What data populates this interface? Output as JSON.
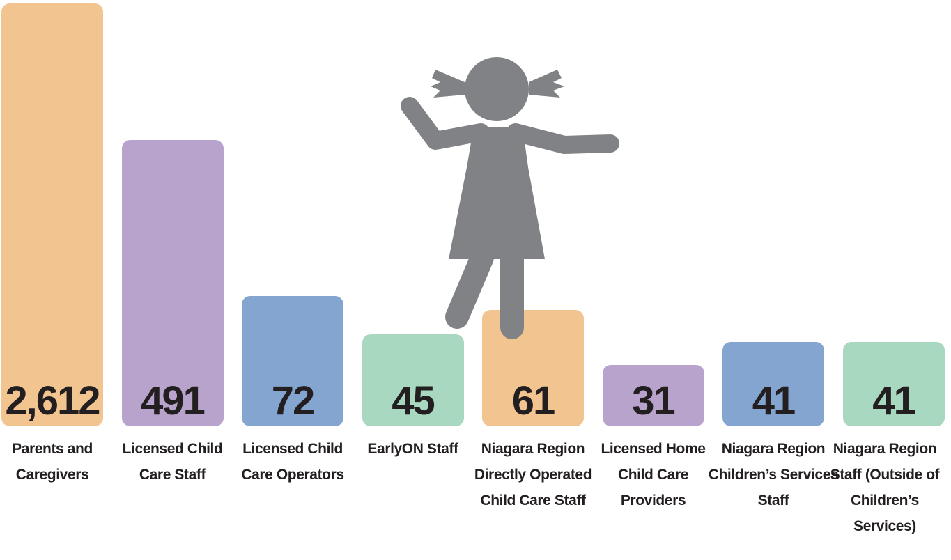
{
  "chart_data": {
    "type": "bar",
    "categories": [
      "Parents and Caregivers",
      "Licensed Child Care Staff",
      "Licensed Child Care Operators",
      "EarlyON Staff",
      "Niagara Region Directly Operated Child Care Staff",
      "Licensed Home Child Care Providers",
      "Niagara Region Children’s Services Staff",
      "Niagara Region Staff (Outside of Children’s Services)"
    ],
    "values": [
      2612,
      491,
      72,
      45,
      61,
      31,
      41,
      41
    ],
    "value_labels": [
      "2,612",
      "491",
      "72",
      "45",
      "61",
      "31",
      "41",
      "41"
    ],
    "colors": [
      "#f2c48f",
      "#b8a3cc",
      "#84a5d0",
      "#a8d8c0",
      "#f2c48f",
      "#b8a3cc",
      "#84a5d0",
      "#a8d8c0"
    ],
    "log_scale": true
  }
}
